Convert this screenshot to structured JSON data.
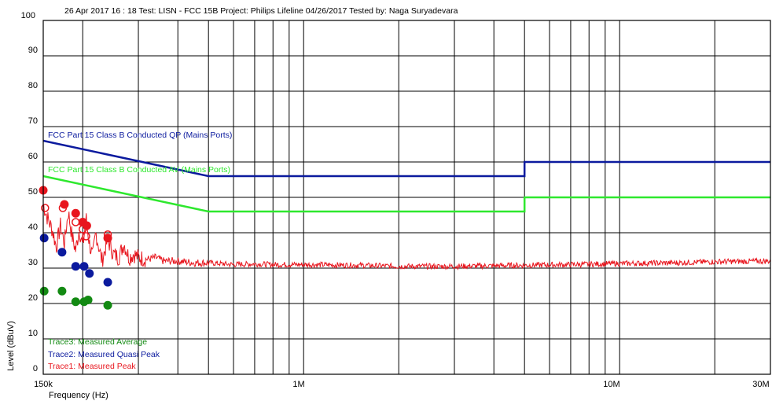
{
  "chart_data": {
    "type": "line",
    "title": "26 Apr 2017   16 : 18  Test: LISN - FCC 15B Project: Philips Lifeline 04/26/2017  Tested by: Naga Suryadevara",
    "xlabel": "Frequency (Hz)",
    "ylabel": "Level (dBuV)",
    "x_scale": "log",
    "xlim": [
      150000,
      30000000
    ],
    "ylim": [
      0,
      100
    ],
    "grid": true,
    "x_tick_labels": [
      {
        "value": 150000,
        "label": "150k"
      },
      {
        "value": 1000000,
        "label": "1M"
      },
      {
        "value": 10000000,
        "label": "10M"
      },
      {
        "value": 30000000,
        "label": "30M"
      }
    ],
    "y_tick_labels": [
      "0",
      "10",
      "20",
      "30",
      "40",
      "50",
      "60",
      "70",
      "80",
      "90",
      "100"
    ],
    "limit_lines": [
      {
        "name": "FCC Part 15 Class B Conducted QP (Mains Ports)",
        "color": "#0b1a9e",
        "points": [
          [
            150000,
            66
          ],
          [
            500000,
            56
          ],
          [
            5000000,
            56
          ],
          [
            5000000,
            60
          ],
          [
            30000000,
            60
          ]
        ]
      },
      {
        "name": "FCC Part 15 Class B Conducted AV (Mains Ports)",
        "color": "#2ee82e",
        "points": [
          [
            150000,
            56
          ],
          [
            500000,
            46
          ],
          [
            5000000,
            46
          ],
          [
            5000000,
            50
          ],
          [
            30000000,
            50
          ]
        ]
      }
    ],
    "series": [
      {
        "name": "Trace1: Measured Peak",
        "color": "#e8161e",
        "trace": [
          [
            150000,
            48
          ],
          [
            155000,
            44
          ],
          [
            160000,
            41
          ],
          [
            165000,
            36
          ],
          [
            170000,
            42
          ],
          [
            175000,
            37
          ],
          [
            180000,
            46
          ],
          [
            185000,
            39
          ],
          [
            190000,
            35
          ],
          [
            195000,
            41
          ],
          [
            200000,
            36
          ],
          [
            205000,
            44
          ],
          [
            210000,
            37
          ],
          [
            215000,
            33
          ],
          [
            220000,
            40
          ],
          [
            225000,
            36
          ],
          [
            230000,
            32
          ],
          [
            240000,
            38
          ],
          [
            250000,
            34
          ],
          [
            260000,
            33
          ],
          [
            270000,
            37
          ],
          [
            280000,
            33
          ],
          [
            290000,
            34
          ],
          [
            300000,
            33
          ],
          [
            320000,
            32.5
          ],
          [
            340000,
            33
          ],
          [
            360000,
            32
          ],
          [
            400000,
            32
          ],
          [
            450000,
            31.5
          ],
          [
            500000,
            31.5
          ],
          [
            600000,
            31
          ],
          [
            700000,
            31.2
          ],
          [
            800000,
            31
          ],
          [
            1000000,
            31
          ],
          [
            1500000,
            30.8
          ],
          [
            2000000,
            30.5
          ],
          [
            3000000,
            30.5
          ],
          [
            5000000,
            30.8
          ],
          [
            7000000,
            31
          ],
          [
            10000000,
            31.3
          ],
          [
            15000000,
            31.5
          ],
          [
            20000000,
            31.8
          ],
          [
            30000000,
            32
          ]
        ],
        "points": [
          [
            150000,
            52
          ],
          [
            175000,
            48
          ],
          [
            190000,
            45.5
          ],
          [
            200000,
            43
          ],
          [
            206000,
            42
          ],
          [
            240000,
            38.5
          ]
        ],
        "hollow_points": [
          [
            152000,
            47
          ],
          [
            173000,
            47
          ],
          [
            190000,
            43
          ],
          [
            200000,
            41
          ],
          [
            205000,
            39
          ],
          [
            240000,
            39.5
          ]
        ]
      },
      {
        "name": "Trace2: Measured Quasi Peak",
        "color": "#0b1a9e",
        "points": [
          [
            151000,
            38.5
          ],
          [
            172000,
            34.5
          ],
          [
            190000,
            30.5
          ],
          [
            202000,
            30.5
          ],
          [
            210000,
            28.5
          ],
          [
            240000,
            26
          ]
        ]
      },
      {
        "name": "Trace3: Measured Average",
        "color": "#138a13",
        "points": [
          [
            151000,
            23.5
          ],
          [
            172000,
            23.5
          ],
          [
            190000,
            20.5
          ],
          [
            202000,
            20.5
          ],
          [
            208000,
            21
          ],
          [
            240000,
            19.5
          ]
        ]
      }
    ]
  }
}
